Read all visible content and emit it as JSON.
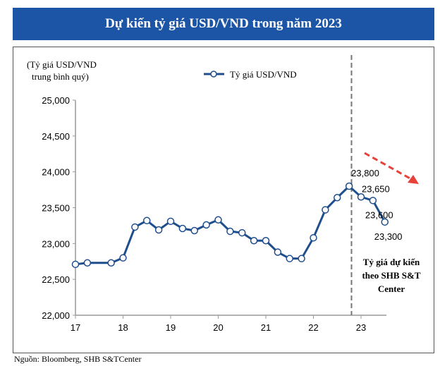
{
  "banner_title": "Dự kiến tỷ giá USD/VND trong năm 2023",
  "source": "Nguồn: Bloomberg, SHB S&TCenter",
  "chart_data": {
    "type": "line",
    "ylabel": [
      "(Tỷ giá USD/VND",
      "trung bình quý)"
    ],
    "xlim": [
      17,
      23.5
    ],
    "ylim": [
      22000,
      25000
    ],
    "yticks": [
      22000,
      22500,
      23000,
      23500,
      24000,
      24500,
      25000
    ],
    "ytick_labels": [
      "22,000",
      "22,500",
      "23,000",
      "23,500",
      "24,000",
      "24,500",
      "25,000"
    ],
    "xticks": [
      17,
      18,
      19,
      20,
      21,
      22,
      23
    ],
    "xtick_labels": [
      "17",
      "18",
      "19",
      "20",
      "21",
      "22",
      "23"
    ],
    "grid": false,
    "legend_position": "top-center",
    "series": [
      {
        "name": "Tỷ giá USD/VND",
        "color": "#1f4e8c",
        "x": [
          17.0,
          17.25,
          17.75,
          18.0,
          18.25,
          18.5,
          18.75,
          19.0,
          19.25,
          19.5,
          19.75,
          20.0,
          20.25,
          20.5,
          20.75,
          21.0,
          21.25,
          21.5,
          21.75,
          22.0,
          22.25,
          22.5,
          22.75,
          23.0,
          23.25,
          23.5
        ],
        "y": [
          22710,
          22730,
          22730,
          22800,
          23230,
          23320,
          23190,
          23310,
          23210,
          23180,
          23260,
          23330,
          23170,
          23150,
          23040,
          23040,
          22880,
          22790,
          22790,
          23080,
          23470,
          23640,
          23800,
          23650,
          23600,
          23300
        ]
      }
    ],
    "data_labels": [
      {
        "x": 22.75,
        "y": 23800,
        "text": "23,800"
      },
      {
        "x": 23.0,
        "y": 23650,
        "text": "23,650"
      },
      {
        "x": 23.25,
        "y": 23600,
        "text": "23,600"
      },
      {
        "x": 23.5,
        "y": 23300,
        "text": "23,300"
      }
    ],
    "forecast_divider_x": 22.8,
    "forecast_annotation": [
      "Tỷ giá dự kiến",
      "theo SHB S&T",
      "Center"
    ],
    "trend_arrow_color": "#e8413a",
    "trend_arrow_direction": "down"
  }
}
